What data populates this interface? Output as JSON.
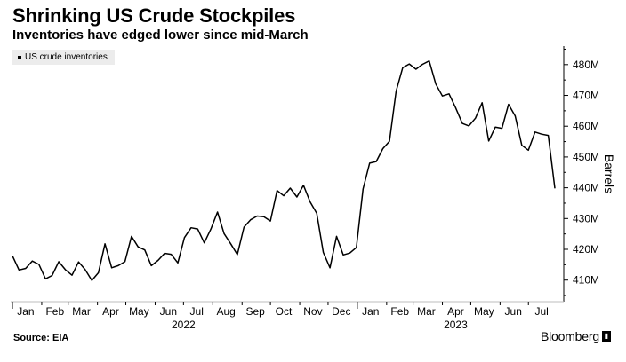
{
  "title": "Shrinking US Crude Stockpiles",
  "subtitle": "Inventories have edged lower since mid-March",
  "source": "Source: EIA",
  "brand": "Bloomberg",
  "chart_data": {
    "type": "line",
    "series": [
      {
        "name": "US crude inventories",
        "color": "#000000",
        "points": [
          [
            "2022-01-01",
            417.9
          ],
          [
            "2022-01-08",
            413.3
          ],
          [
            "2022-01-15",
            413.8
          ],
          [
            "2022-01-22",
            416.2
          ],
          [
            "2022-01-29",
            415.1
          ],
          [
            "2022-02-05",
            410.4
          ],
          [
            "2022-02-12",
            411.5
          ],
          [
            "2022-02-19",
            416.0
          ],
          [
            "2022-02-26",
            413.4
          ],
          [
            "2022-03-05",
            411.6
          ],
          [
            "2022-03-12",
            415.9
          ],
          [
            "2022-03-19",
            413.4
          ],
          [
            "2022-03-26",
            409.9
          ],
          [
            "2022-04-02",
            412.4
          ],
          [
            "2022-04-09",
            421.8
          ],
          [
            "2022-04-16",
            414.0
          ],
          [
            "2022-04-23",
            414.7
          ],
          [
            "2022-04-30",
            416.0
          ],
          [
            "2022-05-07",
            424.2
          ],
          [
            "2022-05-14",
            420.8
          ],
          [
            "2022-05-21",
            419.8
          ],
          [
            "2022-05-28",
            414.7
          ],
          [
            "2022-06-04",
            416.4
          ],
          [
            "2022-06-11",
            418.7
          ],
          [
            "2022-06-18",
            418.4
          ],
          [
            "2022-06-25",
            415.6
          ],
          [
            "2022-07-02",
            423.8
          ],
          [
            "2022-07-09",
            427.0
          ],
          [
            "2022-07-16",
            426.6
          ],
          [
            "2022-07-23",
            422.1
          ],
          [
            "2022-07-30",
            426.6
          ],
          [
            "2022-08-06",
            432.1
          ],
          [
            "2022-08-13",
            425.1
          ],
          [
            "2022-08-20",
            421.8
          ],
          [
            "2022-08-27",
            418.3
          ],
          [
            "2022-09-03",
            427.2
          ],
          [
            "2022-09-10",
            429.6
          ],
          [
            "2022-09-17",
            430.8
          ],
          [
            "2022-09-24",
            430.6
          ],
          [
            "2022-10-01",
            429.2
          ],
          [
            "2022-10-08",
            439.1
          ],
          [
            "2022-10-15",
            437.4
          ],
          [
            "2022-10-22",
            439.9
          ],
          [
            "2022-10-29",
            437.0
          ],
          [
            "2022-11-05",
            440.8
          ],
          [
            "2022-11-12",
            435.4
          ],
          [
            "2022-11-19",
            431.7
          ],
          [
            "2022-11-26",
            419.0
          ],
          [
            "2022-12-03",
            414.0
          ],
          [
            "2022-12-10",
            424.2
          ],
          [
            "2022-12-17",
            418.2
          ],
          [
            "2022-12-24",
            418.8
          ],
          [
            "2022-12-31",
            420.6
          ],
          [
            "2023-01-07",
            439.6
          ],
          [
            "2023-01-14",
            448.0
          ],
          [
            "2023-01-21",
            448.5
          ],
          [
            "2023-01-28",
            452.7
          ],
          [
            "2023-02-04",
            455.1
          ],
          [
            "2023-02-11",
            471.4
          ],
          [
            "2023-02-18",
            479.0
          ],
          [
            "2023-02-25",
            480.2
          ],
          [
            "2023-03-04",
            478.5
          ],
          [
            "2023-03-11",
            480.1
          ],
          [
            "2023-03-18",
            481.2
          ],
          [
            "2023-03-25",
            473.7
          ],
          [
            "2023-04-01",
            469.8
          ],
          [
            "2023-04-08",
            470.5
          ],
          [
            "2023-04-15",
            466.0
          ],
          [
            "2023-04-22",
            460.9
          ],
          [
            "2023-04-29",
            460.1
          ],
          [
            "2023-05-06",
            462.6
          ],
          [
            "2023-05-13",
            467.6
          ],
          [
            "2023-05-20",
            455.2
          ],
          [
            "2023-05-27",
            459.7
          ],
          [
            "2023-06-03",
            459.3
          ],
          [
            "2023-06-10",
            467.1
          ],
          [
            "2023-06-17",
            463.3
          ],
          [
            "2023-06-24",
            453.8
          ],
          [
            "2023-07-01",
            452.2
          ],
          [
            "2023-07-08",
            458.1
          ],
          [
            "2023-07-15",
            457.4
          ],
          [
            "2023-07-22",
            457.0
          ],
          [
            "2023-07-29",
            439.8
          ]
        ]
      }
    ],
    "x_range": [
      "2022-01-01",
      "2023-07-29"
    ],
    "ylim": [
      403,
      486
    ],
    "y_ticks": [
      410,
      420,
      430,
      440,
      450,
      460,
      470,
      480
    ],
    "y_tick_labels": [
      "410M",
      "420M",
      "430M",
      "440M",
      "450M",
      "460M",
      "470M",
      "480M"
    ],
    "ylabel": "Barrels",
    "x_ticks": [
      {
        "date": "2022-01-15",
        "label": "Jan"
      },
      {
        "date": "2022-02-15",
        "label": "Feb"
      },
      {
        "date": "2022-03-15",
        "label": "Mar"
      },
      {
        "date": "2022-04-15",
        "label": "Apr"
      },
      {
        "date": "2022-05-15",
        "label": "May"
      },
      {
        "date": "2022-06-15",
        "label": "Jun"
      },
      {
        "date": "2022-07-15",
        "label": "Jul"
      },
      {
        "date": "2022-08-15",
        "label": "Aug"
      },
      {
        "date": "2022-09-15",
        "label": "Sep"
      },
      {
        "date": "2022-10-15",
        "label": "Oct"
      },
      {
        "date": "2022-11-15",
        "label": "Nov"
      },
      {
        "date": "2022-12-15",
        "label": "Dec"
      },
      {
        "date": "2023-01-15",
        "label": "Jan"
      },
      {
        "date": "2023-02-15",
        "label": "Feb"
      },
      {
        "date": "2023-03-15",
        "label": "Mar"
      },
      {
        "date": "2023-04-15",
        "label": "Apr"
      },
      {
        "date": "2023-05-15",
        "label": "May"
      },
      {
        "date": "2023-06-15",
        "label": "Jun"
      },
      {
        "date": "2023-07-15",
        "label": "Jul"
      }
    ],
    "year_labels": [
      {
        "date": "2022-07-01",
        "label": "2022"
      },
      {
        "date": "2023-04-15",
        "label": "2023"
      }
    ],
    "legend_position": "top-left",
    "grid": false
  }
}
